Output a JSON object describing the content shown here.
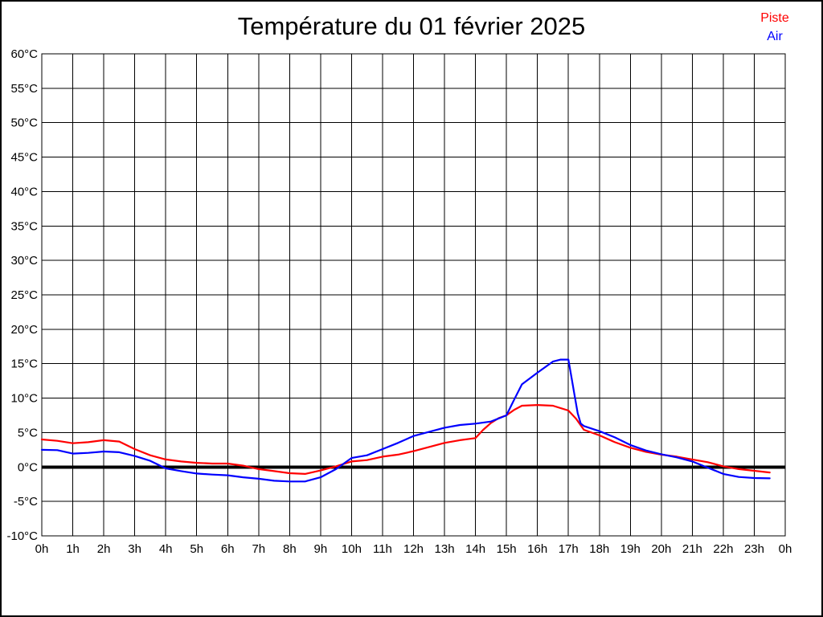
{
  "page": {
    "title": "Température du 01 février 2025"
  },
  "legend": {
    "position": "top-right",
    "items": [
      {
        "label": "Piste",
        "color": "#ff0000"
      },
      {
        "label": "Air",
        "color": "#0000ff"
      }
    ]
  },
  "chart_data": {
    "type": "line",
    "title": "Température du 01 février 2025",
    "xlabel": "",
    "ylabel": "",
    "xlim": [
      0,
      24
    ],
    "ylim": [
      -10,
      60
    ],
    "x_tick_step_hours": 1,
    "y_tick_step_degrees": 5,
    "grid": true,
    "zero_line_bold": true,
    "x_tick_labels": [
      "0h",
      "1h",
      "2h",
      "3h",
      "4h",
      "5h",
      "6h",
      "7h",
      "8h",
      "9h",
      "10h",
      "11h",
      "12h",
      "13h",
      "14h",
      "15h",
      "16h",
      "17h",
      "18h",
      "19h",
      "20h",
      "21h",
      "22h",
      "23h",
      "0h"
    ],
    "y_tick_labels": [
      "60°C",
      "55°C",
      "50°C",
      "45°C",
      "40°C",
      "35°C",
      "30°C",
      "25°C",
      "20°C",
      "15°C",
      "10°C",
      "5°C",
      "0°C",
      "-5°C",
      "-10°C"
    ],
    "axis_color": "#000000",
    "series": [
      {
        "name": "Piste",
        "color": "#ff0000",
        "points": [
          [
            0,
            4.0
          ],
          [
            0.5,
            3.8
          ],
          [
            1,
            3.45
          ],
          [
            1.5,
            3.6
          ],
          [
            2,
            3.9
          ],
          [
            2.5,
            3.7
          ],
          [
            3,
            2.6
          ],
          [
            3.5,
            1.7
          ],
          [
            4,
            1.1
          ],
          [
            4.5,
            0.8
          ],
          [
            5,
            0.6
          ],
          [
            5.5,
            0.5
          ],
          [
            6,
            0.5
          ],
          [
            6.5,
            0.2
          ],
          [
            7,
            -0.3
          ],
          [
            7.5,
            -0.6
          ],
          [
            8,
            -0.9
          ],
          [
            8.5,
            -1.0
          ],
          [
            9,
            -0.5
          ],
          [
            9.5,
            0.1
          ],
          [
            10,
            0.8
          ],
          [
            10.5,
            1.0
          ],
          [
            11,
            1.5
          ],
          [
            11.5,
            1.8
          ],
          [
            12,
            2.3
          ],
          [
            12.5,
            2.9
          ],
          [
            13,
            3.5
          ],
          [
            13.5,
            3.9
          ],
          [
            14,
            4.2
          ],
          [
            14.25,
            5.4
          ],
          [
            14.5,
            6.4
          ],
          [
            14.75,
            7.1
          ],
          [
            15,
            7.5
          ],
          [
            15.25,
            8.3
          ],
          [
            15.5,
            8.9
          ],
          [
            16,
            9.0
          ],
          [
            16.5,
            8.9
          ],
          [
            17,
            8.2
          ],
          [
            17.25,
            7.0
          ],
          [
            17.5,
            5.4
          ],
          [
            18,
            4.6
          ],
          [
            18.5,
            3.6
          ],
          [
            19,
            2.8
          ],
          [
            19.5,
            2.2
          ],
          [
            20,
            1.8
          ],
          [
            20.5,
            1.5
          ],
          [
            21,
            1.1
          ],
          [
            21.5,
            0.7
          ],
          [
            22,
            0.1
          ],
          [
            22.5,
            -0.3
          ],
          [
            23,
            -0.55
          ],
          [
            23.5,
            -0.8
          ]
        ]
      },
      {
        "name": "Air",
        "color": "#0000ff",
        "points": [
          [
            0,
            2.5
          ],
          [
            0.5,
            2.45
          ],
          [
            1,
            1.95
          ],
          [
            1.5,
            2.05
          ],
          [
            2,
            2.25
          ],
          [
            2.5,
            2.15
          ],
          [
            3,
            1.6
          ],
          [
            3.5,
            0.9
          ],
          [
            4,
            -0.2
          ],
          [
            4.5,
            -0.6
          ],
          [
            5,
            -0.95
          ],
          [
            5.5,
            -1.1
          ],
          [
            6,
            -1.2
          ],
          [
            6.5,
            -1.5
          ],
          [
            7,
            -1.7
          ],
          [
            7.5,
            -2.0
          ],
          [
            8,
            -2.1
          ],
          [
            8.5,
            -2.1
          ],
          [
            9,
            -1.5
          ],
          [
            9.5,
            -0.3
          ],
          [
            10,
            1.3
          ],
          [
            10.5,
            1.7
          ],
          [
            11,
            2.6
          ],
          [
            11.5,
            3.5
          ],
          [
            12,
            4.5
          ],
          [
            12.5,
            5.1
          ],
          [
            13,
            5.7
          ],
          [
            13.5,
            6.1
          ],
          [
            14,
            6.3
          ],
          [
            14.5,
            6.6
          ],
          [
            15,
            7.5
          ],
          [
            15.25,
            9.8
          ],
          [
            15.5,
            12.0
          ],
          [
            16,
            13.7
          ],
          [
            16.5,
            15.3
          ],
          [
            16.75,
            15.6
          ],
          [
            17,
            15.6
          ],
          [
            17.1,
            13.0
          ],
          [
            17.2,
            10.4
          ],
          [
            17.3,
            7.8
          ],
          [
            17.4,
            6.3
          ],
          [
            17.5,
            5.95
          ],
          [
            18,
            5.2
          ],
          [
            18.5,
            4.3
          ],
          [
            19,
            3.2
          ],
          [
            19.5,
            2.4
          ],
          [
            20,
            1.85
          ],
          [
            20.5,
            1.4
          ],
          [
            21,
            0.8
          ],
          [
            21.5,
            -0.1
          ],
          [
            22,
            -1.0
          ],
          [
            22.5,
            -1.45
          ],
          [
            23,
            -1.6
          ],
          [
            23.5,
            -1.65
          ]
        ]
      }
    ]
  }
}
